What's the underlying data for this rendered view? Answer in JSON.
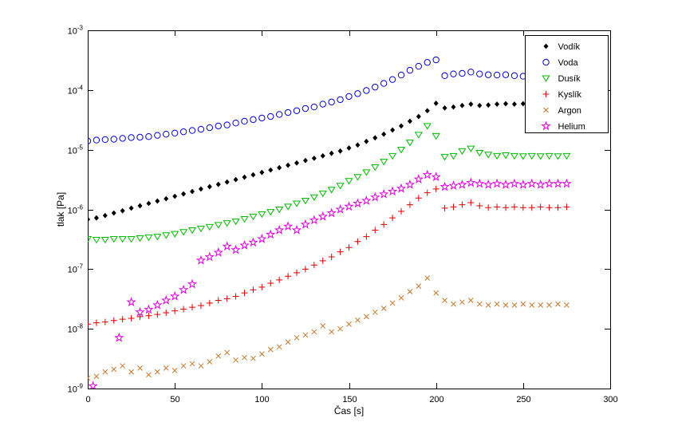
{
  "figure": {
    "background": "#ffffff",
    "axis_color": "#000000"
  },
  "chart_data": {
    "type": "scatter",
    "title": "",
    "xlabel": "Čas [s]",
    "ylabel": "tlak [Pa]",
    "x_range": [
      0,
      300
    ],
    "y_range": [
      1e-09,
      0.001
    ],
    "y_scale": "log",
    "x_ticks": [
      0,
      50,
      100,
      150,
      200,
      250,
      300
    ],
    "y_tick_exponents": [
      -3,
      -4,
      -5,
      -6,
      -7,
      -8,
      -9
    ],
    "grid": false,
    "legend_position": "top-right",
    "series": [
      {
        "key": "vodik",
        "name": "Vodík",
        "marker": "diamond",
        "color": "#000000",
        "filled": true,
        "x": [
          0,
          5,
          10,
          15,
          20,
          25,
          30,
          35,
          40,
          45,
          50,
          55,
          60,
          65,
          70,
          75,
          80,
          85,
          90,
          95,
          100,
          105,
          110,
          115,
          120,
          125,
          130,
          135,
          140,
          145,
          150,
          155,
          160,
          165,
          170,
          175,
          180,
          185,
          190,
          195,
          200,
          205,
          210,
          215,
          220,
          225,
          230,
          235,
          240,
          245,
          250,
          255,
          260,
          265,
          270,
          275
        ],
        "y": [
          6.8e-07,
          7.2e-07,
          7.9e-07,
          8.7e-07,
          9.5e-07,
          1.05e-06,
          1.15e-06,
          1.26e-06,
          1.38e-06,
          1.51e-06,
          1.66e-06,
          1.82e-06,
          2e-06,
          2.2e-06,
          2.4e-06,
          2.63e-06,
          2.88e-06,
          3.16e-06,
          3.47e-06,
          3.8e-06,
          4.17e-06,
          4.57e-06,
          5e-06,
          5.5e-06,
          6e-06,
          6.6e-06,
          7.2e-06,
          7.9e-06,
          8.7e-06,
          9.5e-06,
          1.07e-05,
          1.2e-05,
          1.38e-05,
          1.58e-05,
          1.82e-05,
          2.14e-05,
          2.5e-05,
          3e-05,
          3.6e-05,
          4.5e-05,
          6e-05,
          5e-05,
          5.2e-05,
          5.5e-05,
          5.8e-05,
          5.5e-05,
          5.6e-05,
          5.8e-05,
          5.9e-05,
          5.8e-05,
          5.9e-05,
          5.8e-05,
          5.9e-05,
          5.8e-05,
          5.6e-05,
          5.8e-05
        ]
      },
      {
        "key": "voda",
        "name": "Voda",
        "marker": "circle",
        "color": "#0000CC",
        "filled": false,
        "x": [
          0,
          5,
          10,
          15,
          20,
          25,
          30,
          35,
          40,
          45,
          50,
          55,
          60,
          65,
          70,
          75,
          80,
          85,
          90,
          95,
          100,
          105,
          110,
          115,
          120,
          125,
          130,
          135,
          140,
          145,
          150,
          155,
          160,
          165,
          170,
          175,
          180,
          185,
          190,
          195,
          200,
          205,
          210,
          215,
          220,
          225,
          230,
          235,
          240,
          245,
          250,
          255,
          260,
          265,
          270,
          275
        ],
        "y": [
          1.4e-05,
          1.45e-05,
          1.48e-05,
          1.5e-05,
          1.55e-05,
          1.6e-05,
          1.62e-05,
          1.66e-05,
          1.74e-05,
          1.82e-05,
          1.9e-05,
          2e-05,
          2.1e-05,
          2.2e-05,
          2.34e-05,
          2.5e-05,
          2.6e-05,
          2.8e-05,
          3e-05,
          3.2e-05,
          3.4e-05,
          3.6e-05,
          3.9e-05,
          4.2e-05,
          4.5e-05,
          4.9e-05,
          5.2e-05,
          5.8e-05,
          6.3e-05,
          6.9e-05,
          7.8e-05,
          8.7e-05,
          9.8e-05,
          0.000112,
          0.000129,
          0.00015,
          0.000178,
          0.000214,
          0.00025,
          0.00029,
          0.00032,
          0.000174,
          0.000186,
          0.00019,
          0.0002,
          0.000186,
          0.00018,
          0.000178,
          0.00018,
          0.000174,
          0.00017,
          0.000174,
          0.00017,
          0.000166,
          0.000166,
          0.000166
        ]
      },
      {
        "key": "dusik",
        "name": "Dusík",
        "marker": "triangle-down",
        "color": "#00BB00",
        "filled": false,
        "x": [
          0,
          5,
          10,
          15,
          20,
          25,
          30,
          35,
          40,
          45,
          50,
          55,
          60,
          65,
          70,
          75,
          80,
          85,
          90,
          95,
          100,
          105,
          110,
          115,
          120,
          125,
          130,
          135,
          140,
          145,
          150,
          155,
          160,
          165,
          170,
          175,
          180,
          185,
          190,
          195,
          200,
          205,
          210,
          215,
          220,
          225,
          230,
          235,
          240,
          245,
          250,
          255,
          260,
          265,
          270,
          275
        ],
        "y": [
          3.2e-07,
          3.1e-07,
          3.1e-07,
          3.2e-07,
          3.2e-07,
          3.2e-07,
          3.3e-07,
          3.4e-07,
          3.5e-07,
          3.7e-07,
          3.9e-07,
          4.2e-07,
          4.5e-07,
          4.8e-07,
          5.1e-07,
          5.5e-07,
          5.9e-07,
          6.3e-07,
          6.9e-07,
          7.6e-07,
          8.3e-07,
          9.1e-07,
          1e-06,
          1.12e-06,
          1.26e-06,
          1.4e-06,
          1.6e-06,
          1.86e-06,
          2.14e-06,
          2.5e-06,
          3e-06,
          3.5e-06,
          4.2e-06,
          5.1e-06,
          6.3e-06,
          7.9e-06,
          1e-05,
          1.32e-05,
          1.78e-05,
          2.5e-05,
          1.7e-05,
          7.6e-06,
          7.9e-06,
          9.5e-06,
          1.05e-05,
          8.9e-06,
          8.3e-06,
          7.9e-06,
          8.1e-06,
          7.9e-06,
          7.8e-06,
          7.9e-06,
          7.8e-06,
          7.9e-06,
          7.8e-06,
          7.9e-06
        ]
      },
      {
        "key": "kyslik",
        "name": "Kyslík",
        "marker": "plus",
        "color": "#E00000",
        "filled": false,
        "x": [
          0,
          5,
          10,
          15,
          20,
          25,
          30,
          35,
          40,
          45,
          50,
          55,
          60,
          65,
          70,
          75,
          80,
          85,
          90,
          95,
          100,
          105,
          110,
          115,
          120,
          125,
          130,
          135,
          140,
          145,
          150,
          155,
          160,
          165,
          170,
          175,
          180,
          185,
          190,
          195,
          200,
          205,
          210,
          215,
          220,
          225,
          230,
          235,
          240,
          245,
          250,
          255,
          260,
          265,
          270,
          275
        ],
        "y": [
          1.2e-08,
          1.26e-08,
          1.3e-08,
          1.38e-08,
          1.45e-08,
          1.5e-08,
          1.6e-08,
          1.66e-08,
          1.74e-08,
          1.86e-08,
          2e-08,
          2.14e-08,
          2.3e-08,
          2.45e-08,
          2.7e-08,
          3e-08,
          3.2e-08,
          3.5e-08,
          4e-08,
          4.5e-08,
          5e-08,
          5.8e-08,
          6.6e-08,
          7.6e-08,
          8.7e-08,
          1e-07,
          1.17e-07,
          1.38e-07,
          1.6e-07,
          1.95e-07,
          2.3e-07,
          2.9e-07,
          3.5e-07,
          4.5e-07,
          5.6e-07,
          7.2e-07,
          9.3e-07,
          1.2e-06,
          1.55e-06,
          1.9e-06,
          2.2e-06,
          1.05e-06,
          1.1e-06,
          1.2e-06,
          1.3e-06,
          1.15e-06,
          1.07e-06,
          1.1e-06,
          1.07e-06,
          1.1e-06,
          1.07e-06,
          1.07e-06,
          1.1e-06,
          1.07e-06,
          1.07e-06,
          1.1e-06
        ]
      },
      {
        "key": "argon",
        "name": "Argon",
        "marker": "x",
        "color": "#C8782D",
        "filled": false,
        "x": [
          0,
          5,
          10,
          15,
          20,
          25,
          30,
          35,
          40,
          45,
          50,
          55,
          60,
          65,
          70,
          75,
          80,
          85,
          90,
          95,
          100,
          105,
          110,
          115,
          120,
          125,
          130,
          135,
          140,
          145,
          150,
          155,
          160,
          165,
          170,
          175,
          180,
          185,
          190,
          195,
          200,
          205,
          210,
          215,
          220,
          225,
          230,
          235,
          240,
          245,
          250,
          255,
          260,
          265,
          270,
          275
        ],
        "y": [
          1.5e-09,
          1.6e-09,
          1.9e-09,
          2.1e-09,
          2.4e-09,
          1.9e-09,
          2.2e-09,
          1.7e-09,
          1.9e-09,
          2.2e-09,
          2e-09,
          2.4e-09,
          2.6e-09,
          2.4e-09,
          2.8e-09,
          3.5e-09,
          4e-09,
          3e-09,
          3.3e-09,
          3.2e-09,
          3.8e-09,
          4.5e-09,
          5e-09,
          6e-09,
          7.1e-09,
          7.9e-09,
          8.9e-09,
          1.12e-08,
          8.9e-09,
          1e-08,
          1.2e-08,
          1.4e-08,
          1.6e-08,
          1.9e-08,
          2.2e-08,
          2.7e-08,
          3.3e-08,
          4.2e-08,
          5.2e-08,
          7.1e-08,
          4e-08,
          3e-08,
          2.6e-08,
          2.8e-08,
          3e-08,
          2.6e-08,
          2.5e-08,
          2.6e-08,
          2.5e-08,
          2.5e-08,
          2.6e-08,
          2.5e-08,
          2.5e-08,
          2.5e-08,
          2.6e-08,
          2.5e-08
        ]
      },
      {
        "key": "helium",
        "name": "Helium",
        "marker": "star",
        "color": "#E000E0",
        "filled": false,
        "x": [
          3,
          18,
          25,
          30,
          35,
          40,
          45,
          50,
          55,
          60,
          65,
          70,
          75,
          80,
          85,
          90,
          95,
          100,
          105,
          110,
          115,
          120,
          125,
          130,
          135,
          140,
          145,
          150,
          155,
          160,
          165,
          170,
          175,
          180,
          185,
          190,
          195,
          200,
          205,
          210,
          215,
          220,
          225,
          230,
          235,
          240,
          245,
          250,
          255,
          260,
          265,
          270,
          275
        ],
        "y": [
          1.1e-09,
          7.1e-09,
          2.8e-08,
          1.9e-08,
          2.1e-08,
          2.5e-08,
          3e-08,
          3.5e-08,
          4.5e-08,
          5.6e-08,
          1.4e-07,
          1.6e-07,
          1.9e-07,
          2.4e-07,
          2.1e-07,
          2.5e-07,
          2.8e-07,
          3.2e-07,
          3.8e-07,
          4.5e-07,
          5.2e-07,
          4.5e-07,
          5.6e-07,
          6.6e-07,
          7.6e-07,
          8.7e-07,
          1e-06,
          1.12e-06,
          1.26e-06,
          1.4e-06,
          1.6e-06,
          1.8e-06,
          2e-06,
          2.24e-06,
          2.6e-06,
          3.2e-06,
          3.8e-06,
          3.5e-06,
          2.4e-06,
          2.5e-06,
          2.6e-06,
          2.8e-06,
          2.7e-06,
          2.6e-06,
          2.7e-06,
          2.6e-06,
          2.7e-06,
          2.6e-06,
          2.7e-06,
          2.6e-06,
          2.7e-06,
          2.7e-06,
          2.7e-06
        ]
      }
    ]
  },
  "legend": {
    "entries": [
      "Vodík",
      "Voda",
      "Dusík",
      "Kyslík",
      "Argon",
      "Helium"
    ],
    "border_color": "#000000",
    "background": "#ffffff"
  }
}
